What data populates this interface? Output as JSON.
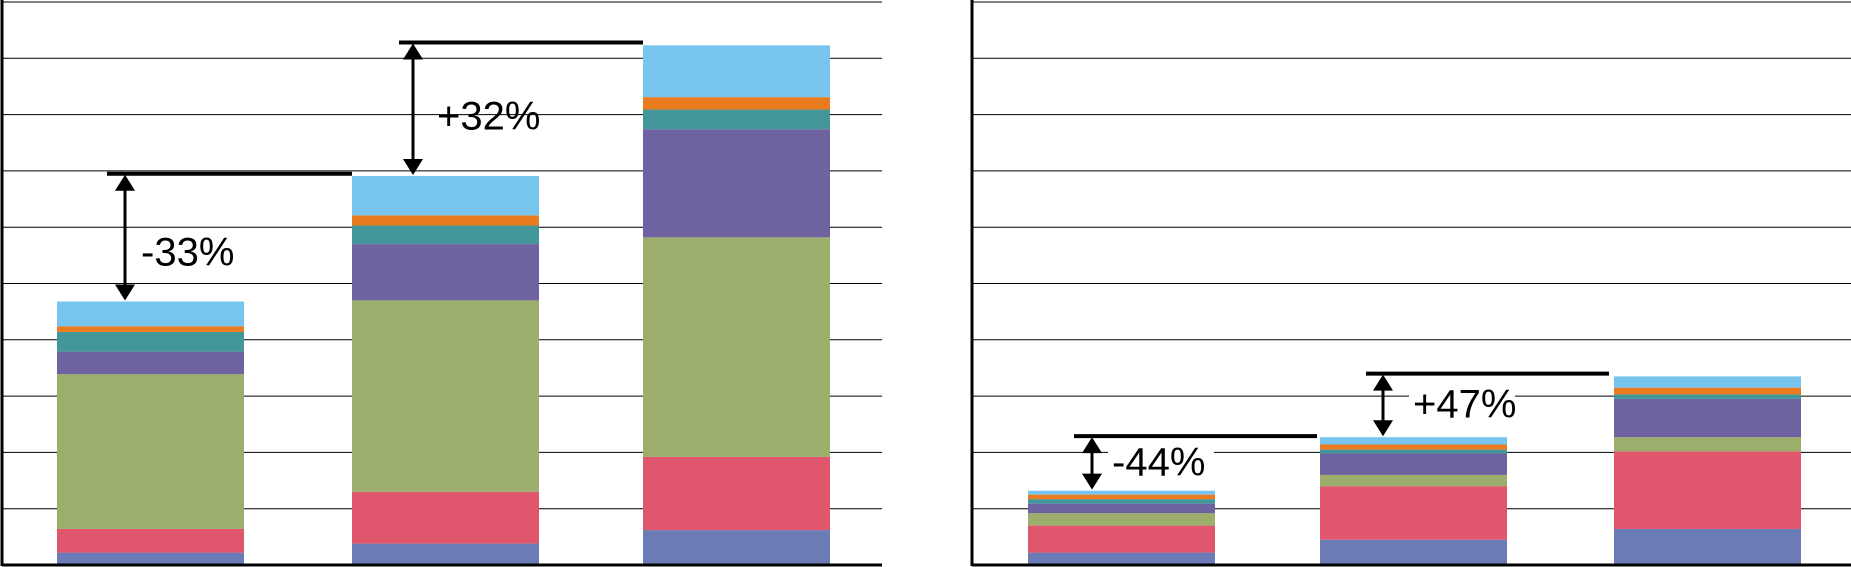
{
  "chart_data": [
    {
      "type": "bar",
      "stacked": true,
      "title": "",
      "xlabel": "",
      "ylabel": "",
      "ylim": [
        0,
        10
      ],
      "grid": true,
      "legend": "none",
      "categories": [
        "",
        "",
        ""
      ],
      "series": [
        {
          "color": "#6b7bb5",
          "values": [
            0.22,
            0.38,
            0.62
          ]
        },
        {
          "color": "#e0576d",
          "values": [
            0.42,
            0.92,
            1.3
          ]
        },
        {
          "color": "#9bae6b",
          "values": [
            2.75,
            3.4,
            3.9
          ]
        },
        {
          "color": "#6e62a0",
          "values": [
            0.4,
            1.0,
            1.92
          ]
        },
        {
          "color": "#43969a",
          "values": [
            0.35,
            0.33,
            0.35
          ]
        },
        {
          "color": "#ea7b1e",
          "values": [
            0.1,
            0.18,
            0.22
          ]
        },
        {
          "color": "#77c4ef",
          "values": [
            0.44,
            0.7,
            0.92
          ]
        }
      ],
      "annotations": [
        {
          "text": "-33%",
          "from_bar": 0,
          "to_level": 6.95
        },
        {
          "text": "+32%",
          "from_bar": 1,
          "to_level": 9.28
        }
      ]
    },
    {
      "type": "bar",
      "stacked": true,
      "title": "",
      "xlabel": "",
      "ylabel": "",
      "ylim": [
        0,
        10
      ],
      "grid": true,
      "legend": "none",
      "categories": [
        "",
        "",
        ""
      ],
      "series": [
        {
          "color": "#6b7bb5",
          "values": [
            0.22,
            0.45,
            0.64
          ]
        },
        {
          "color": "#e0576d",
          "values": [
            0.48,
            0.95,
            1.38
          ]
        },
        {
          "color": "#9bae6b",
          "values": [
            0.22,
            0.2,
            0.25
          ]
        },
        {
          "color": "#6e62a0",
          "values": [
            0.17,
            0.38,
            0.68
          ]
        },
        {
          "color": "#43969a",
          "values": [
            0.08,
            0.07,
            0.08
          ]
        },
        {
          "color": "#ea7b1e",
          "values": [
            0.08,
            0.09,
            0.12
          ]
        },
        {
          "color": "#77c4ef",
          "values": [
            0.07,
            0.13,
            0.2
          ]
        }
      ],
      "annotations": [
        {
          "text": "-44%",
          "from_bar": 0,
          "to_level": 2.29
        },
        {
          "text": "+47%",
          "from_bar": 1,
          "to_level": 3.4
        }
      ]
    }
  ]
}
